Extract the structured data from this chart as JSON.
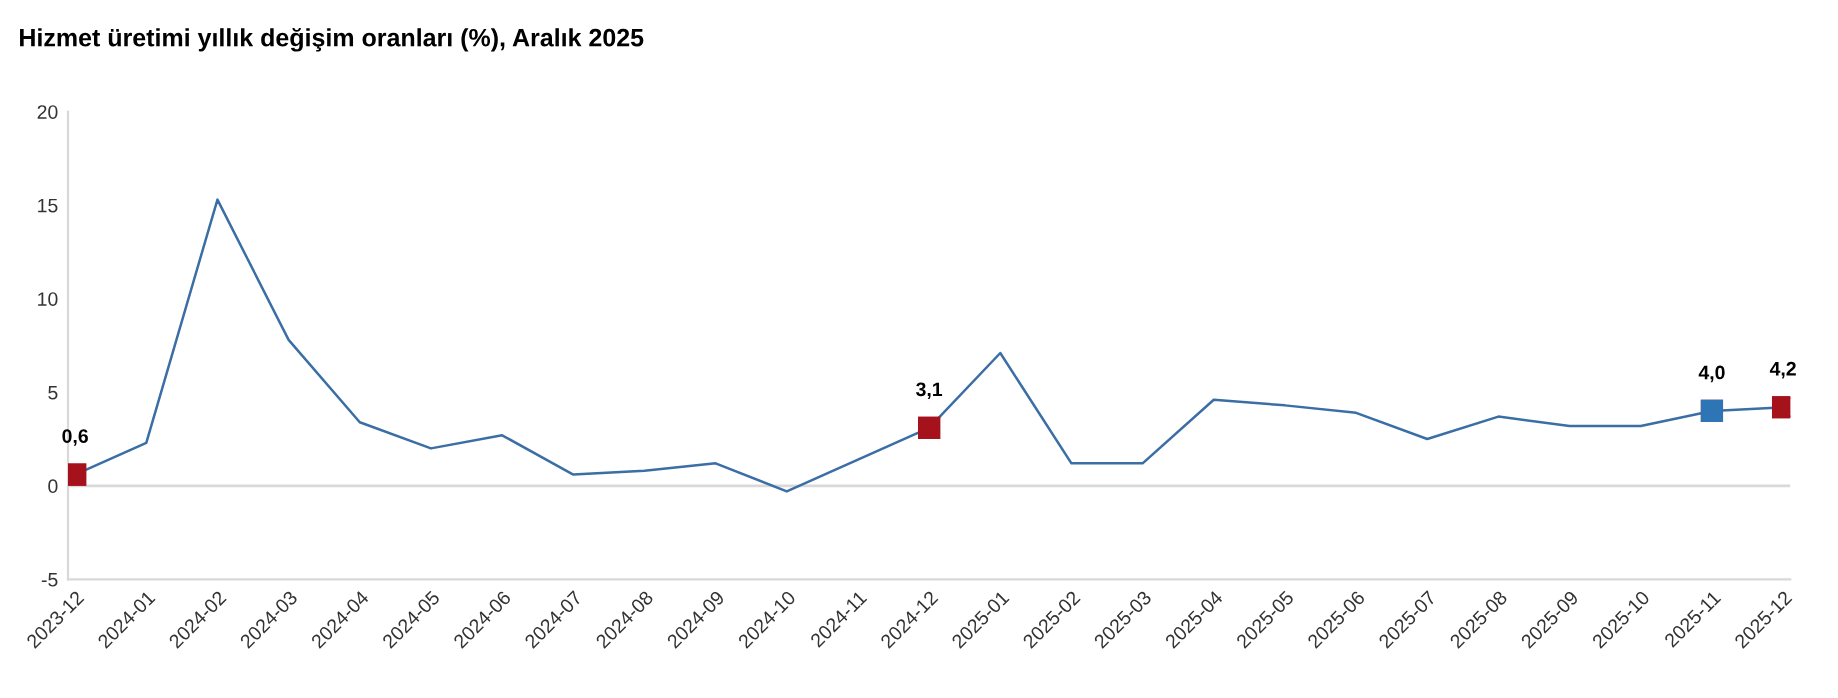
{
  "chart_data": {
    "type": "line",
    "title": "Hizmet üretimi yıllık değişim oranları (%), Aralık 2025",
    "categories": [
      "2023-12",
      "2024-01",
      "2024-02",
      "2024-03",
      "2024-04",
      "2024-05",
      "2024-06",
      "2024-07",
      "2024-08",
      "2024-09",
      "2024-10",
      "2024-11",
      "2024-12",
      "2025-01",
      "2025-02",
      "2025-03",
      "2025-04",
      "2025-05",
      "2025-06",
      "2025-07",
      "2025-08",
      "2025-09",
      "2025-10",
      "2025-11",
      "2025-12"
    ],
    "series": [
      {
        "color": "#3a6ea5",
        "values": [
          0.6,
          2.3,
          15.3,
          7.8,
          3.4,
          2.0,
          2.7,
          0.6,
          0.8,
          1.2,
          -0.3,
          1.4,
          3.1,
          7.1,
          1.2,
          1.2,
          4.6,
          4.3,
          3.9,
          2.5,
          3.7,
          3.2,
          3.2,
          4.0,
          4.2
        ],
        "colors": [
          "#a6121c",
          null,
          null,
          null,
          null,
          null,
          null,
          null,
          null,
          null,
          null,
          null,
          "#a6121c",
          null,
          null,
          null,
          null,
          null,
          null,
          null,
          null,
          null,
          null,
          "#2e75b6",
          "#a6121c"
        ],
        "value_labels": [
          "0,6",
          null,
          null,
          null,
          null,
          null,
          null,
          null,
          null,
          null,
          null,
          null,
          "3,1",
          null,
          null,
          null,
          null,
          null,
          null,
          null,
          null,
          null,
          null,
          "4,0",
          "4,2"
        ]
      }
    ],
    "ylim": [
      -5,
      20
    ],
    "yticks": [
      -5,
      0,
      5,
      10,
      15,
      20
    ],
    "grid": false,
    "line_style": "solid",
    "ref_lines": [
      {
        "axis": "y",
        "value": 0,
        "color": "#d9d9d9"
      }
    ]
  }
}
